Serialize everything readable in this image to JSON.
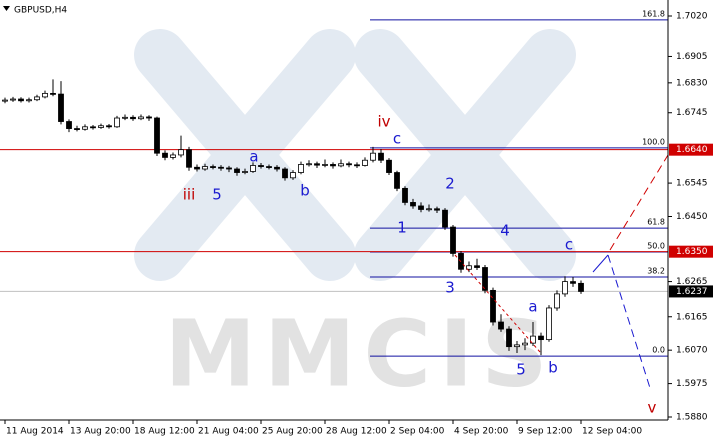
{
  "chart_data": {
    "type": "candlestick",
    "title": "GBPUSD,H4",
    "watermark": "MMCIS",
    "ylim": [
      1.58715,
      1.70655
    ],
    "yticks": [
      {
        "value": 1.702,
        "label": "1.7020"
      },
      {
        "value": 1.6905,
        "label": "1.6905"
      },
      {
        "value": 1.683,
        "label": "1.6830"
      },
      {
        "value": 1.6745,
        "label": "1.6745"
      },
      {
        "value": 1.6545,
        "label": "1.6545"
      },
      {
        "value": 1.645,
        "label": "1.6450"
      },
      {
        "value": 1.6265,
        "label": "1.6265"
      },
      {
        "value": 1.6165,
        "label": "1.6165"
      },
      {
        "value": 1.607,
        "label": "1.6070"
      },
      {
        "value": 1.5975,
        "label": "1.5975"
      },
      {
        "value": 1.588,
        "label": "1.5880"
      }
    ],
    "levels": [
      {
        "value": 1.664,
        "label": "1.6640",
        "color": "#d00000"
      },
      {
        "value": 1.635,
        "label": "1.6350",
        "color": "#d00000"
      }
    ],
    "current_price": {
      "value": 1.6237,
      "label": "1.6237",
      "color": "#000000"
    },
    "fibonacci": {
      "color": "#1010a0",
      "levels": [
        {
          "value": 1.7009,
          "label": "161.8"
        },
        {
          "value": 1.6645,
          "label": "100.0"
        },
        {
          "value": 1.6417,
          "label": "61.8"
        },
        {
          "value": 1.6349,
          "label": "50.0"
        },
        {
          "value": 1.6278,
          "label": "38.2"
        },
        {
          "value": 1.6053,
          "label": "0.0"
        }
      ]
    },
    "annotations": [
      {
        "text": "iv",
        "color": "red"
      },
      {
        "text": "c",
        "color": "blue"
      },
      {
        "text": "iii",
        "color": "red"
      },
      {
        "text": "5",
        "color": "blue"
      },
      {
        "text": "a",
        "color": "blue"
      },
      {
        "text": "b",
        "color": "blue"
      },
      {
        "text": "2",
        "color": "blue"
      },
      {
        "text": "1",
        "color": "blue"
      },
      {
        "text": "4",
        "color": "blue"
      },
      {
        "text": "3",
        "color": "blue"
      },
      {
        "text": "c",
        "color": "blue"
      },
      {
        "text": "a",
        "color": "blue"
      },
      {
        "text": "5",
        "color": "blue"
      },
      {
        "text": "b",
        "color": "blue"
      },
      {
        "text": "v",
        "color": "red"
      }
    ],
    "categories": [
      "11 Aug 2014",
      null,
      null,
      null,
      null,
      null,
      null,
      null,
      "13 Aug 20:00",
      null,
      null,
      null,
      null,
      null,
      null,
      null,
      "18 Aug 12:00",
      null,
      null,
      null,
      null,
      null,
      null,
      null,
      "21 Aug 04:00",
      null,
      null,
      null,
      null,
      null,
      null,
      null,
      "25 Aug 20:00",
      null,
      null,
      null,
      null,
      null,
      null,
      null,
      "28 Aug 12:00",
      null,
      null,
      null,
      null,
      null,
      null,
      null,
      "2 Sep 04:00",
      null,
      null,
      null,
      null,
      null,
      null,
      null,
      "4 Sep 20:00",
      null,
      null,
      null,
      null,
      null,
      null,
      null,
      "9 Sep 12:00",
      null,
      null,
      null,
      null,
      null,
      null,
      null,
      "12 Sep 04:00"
    ],
    "ohlc": [
      [
        1.6778,
        1.6788,
        1.6772,
        1.6781
      ],
      [
        1.6781,
        1.679,
        1.6776,
        1.6784
      ],
      [
        1.6784,
        1.6789,
        1.6774,
        1.6779
      ],
      [
        1.6779,
        1.6788,
        1.6774,
        1.6782
      ],
      [
        1.6782,
        1.6796,
        1.6778,
        1.679
      ],
      [
        1.679,
        1.6808,
        1.6786,
        1.68
      ],
      [
        1.68,
        1.684,
        1.6792,
        1.6798
      ],
      [
        1.6798,
        1.6835,
        1.6712,
        1.672
      ],
      [
        1.672,
        1.6726,
        1.669,
        1.67
      ],
      [
        1.67,
        1.6708,
        1.6692,
        1.6698
      ],
      [
        1.6698,
        1.6712,
        1.6694,
        1.6705
      ],
      [
        1.6705,
        1.671,
        1.6697,
        1.6703
      ],
      [
        1.6703,
        1.6714,
        1.6699,
        1.6708
      ],
      [
        1.6708,
        1.6713,
        1.67,
        1.6705
      ],
      [
        1.6705,
        1.6736,
        1.6702,
        1.673
      ],
      [
        1.673,
        1.674,
        1.6724,
        1.6732
      ],
      [
        1.6732,
        1.6738,
        1.6722,
        1.6728
      ],
      [
        1.6728,
        1.674,
        1.6724,
        1.6733
      ],
      [
        1.6733,
        1.6738,
        1.6722,
        1.673
      ],
      [
        1.673,
        1.6734,
        1.6622,
        1.663
      ],
      [
        1.663,
        1.6638,
        1.661,
        1.6618
      ],
      [
        1.6618,
        1.6632,
        1.6612,
        1.6625
      ],
      [
        1.6625,
        1.668,
        1.6618,
        1.664
      ],
      [
        1.664,
        1.6648,
        1.658,
        1.659
      ],
      [
        1.659,
        1.6598,
        1.6578,
        1.6585
      ],
      [
        1.6585,
        1.66,
        1.658,
        1.6592
      ],
      [
        1.6592,
        1.6598,
        1.6584,
        1.659
      ],
      [
        1.659,
        1.6596,
        1.658,
        1.6588
      ],
      [
        1.6588,
        1.6594,
        1.6576,
        1.6585
      ],
      [
        1.6585,
        1.659,
        1.6566,
        1.6575
      ],
      [
        1.6575,
        1.6586,
        1.657,
        1.6578
      ],
      [
        1.6578,
        1.6604,
        1.6574,
        1.6595
      ],
      [
        1.6595,
        1.6602,
        1.6586,
        1.6592
      ],
      [
        1.6592,
        1.6598,
        1.6584,
        1.659
      ],
      [
        1.659,
        1.6596,
        1.6578,
        1.6585
      ],
      [
        1.6585,
        1.659,
        1.6552,
        1.656
      ],
      [
        1.656,
        1.6582,
        1.6554,
        1.6575
      ],
      [
        1.6575,
        1.6606,
        1.657,
        1.6598
      ],
      [
        1.6598,
        1.661,
        1.6592,
        1.66
      ],
      [
        1.66,
        1.6606,
        1.6588,
        1.6596
      ],
      [
        1.6596,
        1.6612,
        1.659,
        1.6598
      ],
      [
        1.6598,
        1.6604,
        1.6586,
        1.6594
      ],
      [
        1.6594,
        1.6612,
        1.659,
        1.66
      ],
      [
        1.66,
        1.6606,
        1.659,
        1.6597
      ],
      [
        1.6597,
        1.6604,
        1.6588,
        1.6595
      ],
      [
        1.6595,
        1.6618,
        1.6592,
        1.661
      ],
      [
        1.661,
        1.6648,
        1.6604,
        1.663
      ],
      [
        1.663,
        1.6642,
        1.6602,
        1.661
      ],
      [
        1.661,
        1.6616,
        1.6568,
        1.6575
      ],
      [
        1.6575,
        1.658,
        1.6522,
        1.653
      ],
      [
        1.653,
        1.6536,
        1.6482,
        1.649
      ],
      [
        1.649,
        1.65,
        1.6472,
        1.648
      ],
      [
        1.648,
        1.649,
        1.6462,
        1.647
      ],
      [
        1.647,
        1.6484,
        1.6464,
        1.6472
      ],
      [
        1.6472,
        1.6478,
        1.646,
        1.6468
      ],
      [
        1.6468,
        1.6474,
        1.6412,
        1.642
      ],
      [
        1.642,
        1.6426,
        1.6336,
        1.6345
      ],
      [
        1.6345,
        1.6352,
        1.629,
        1.63
      ],
      [
        1.63,
        1.6322,
        1.6292,
        1.631
      ],
      [
        1.631,
        1.633,
        1.6298,
        1.6305
      ],
      [
        1.6305,
        1.6312,
        1.6232,
        1.624
      ],
      [
        1.624,
        1.6248,
        1.614,
        1.615
      ],
      [
        1.615,
        1.6172,
        1.6122,
        1.613
      ],
      [
        1.613,
        1.6138,
        1.6068,
        1.608
      ],
      [
        1.608,
        1.6096,
        1.6062,
        1.6085
      ],
      [
        1.6085,
        1.6104,
        1.607,
        1.609
      ],
      [
        1.609,
        1.615,
        1.6082,
        1.611
      ],
      [
        1.611,
        1.612,
        1.6056,
        1.61
      ],
      [
        1.61,
        1.6198,
        1.6094,
        1.619
      ],
      [
        1.619,
        1.624,
        1.6182,
        1.623
      ],
      [
        1.623,
        1.628,
        1.6222,
        1.6265
      ],
      [
        1.6265,
        1.6278,
        1.625,
        1.626
      ],
      [
        1.626,
        1.6268,
        1.623,
        1.6237
      ]
    ]
  }
}
